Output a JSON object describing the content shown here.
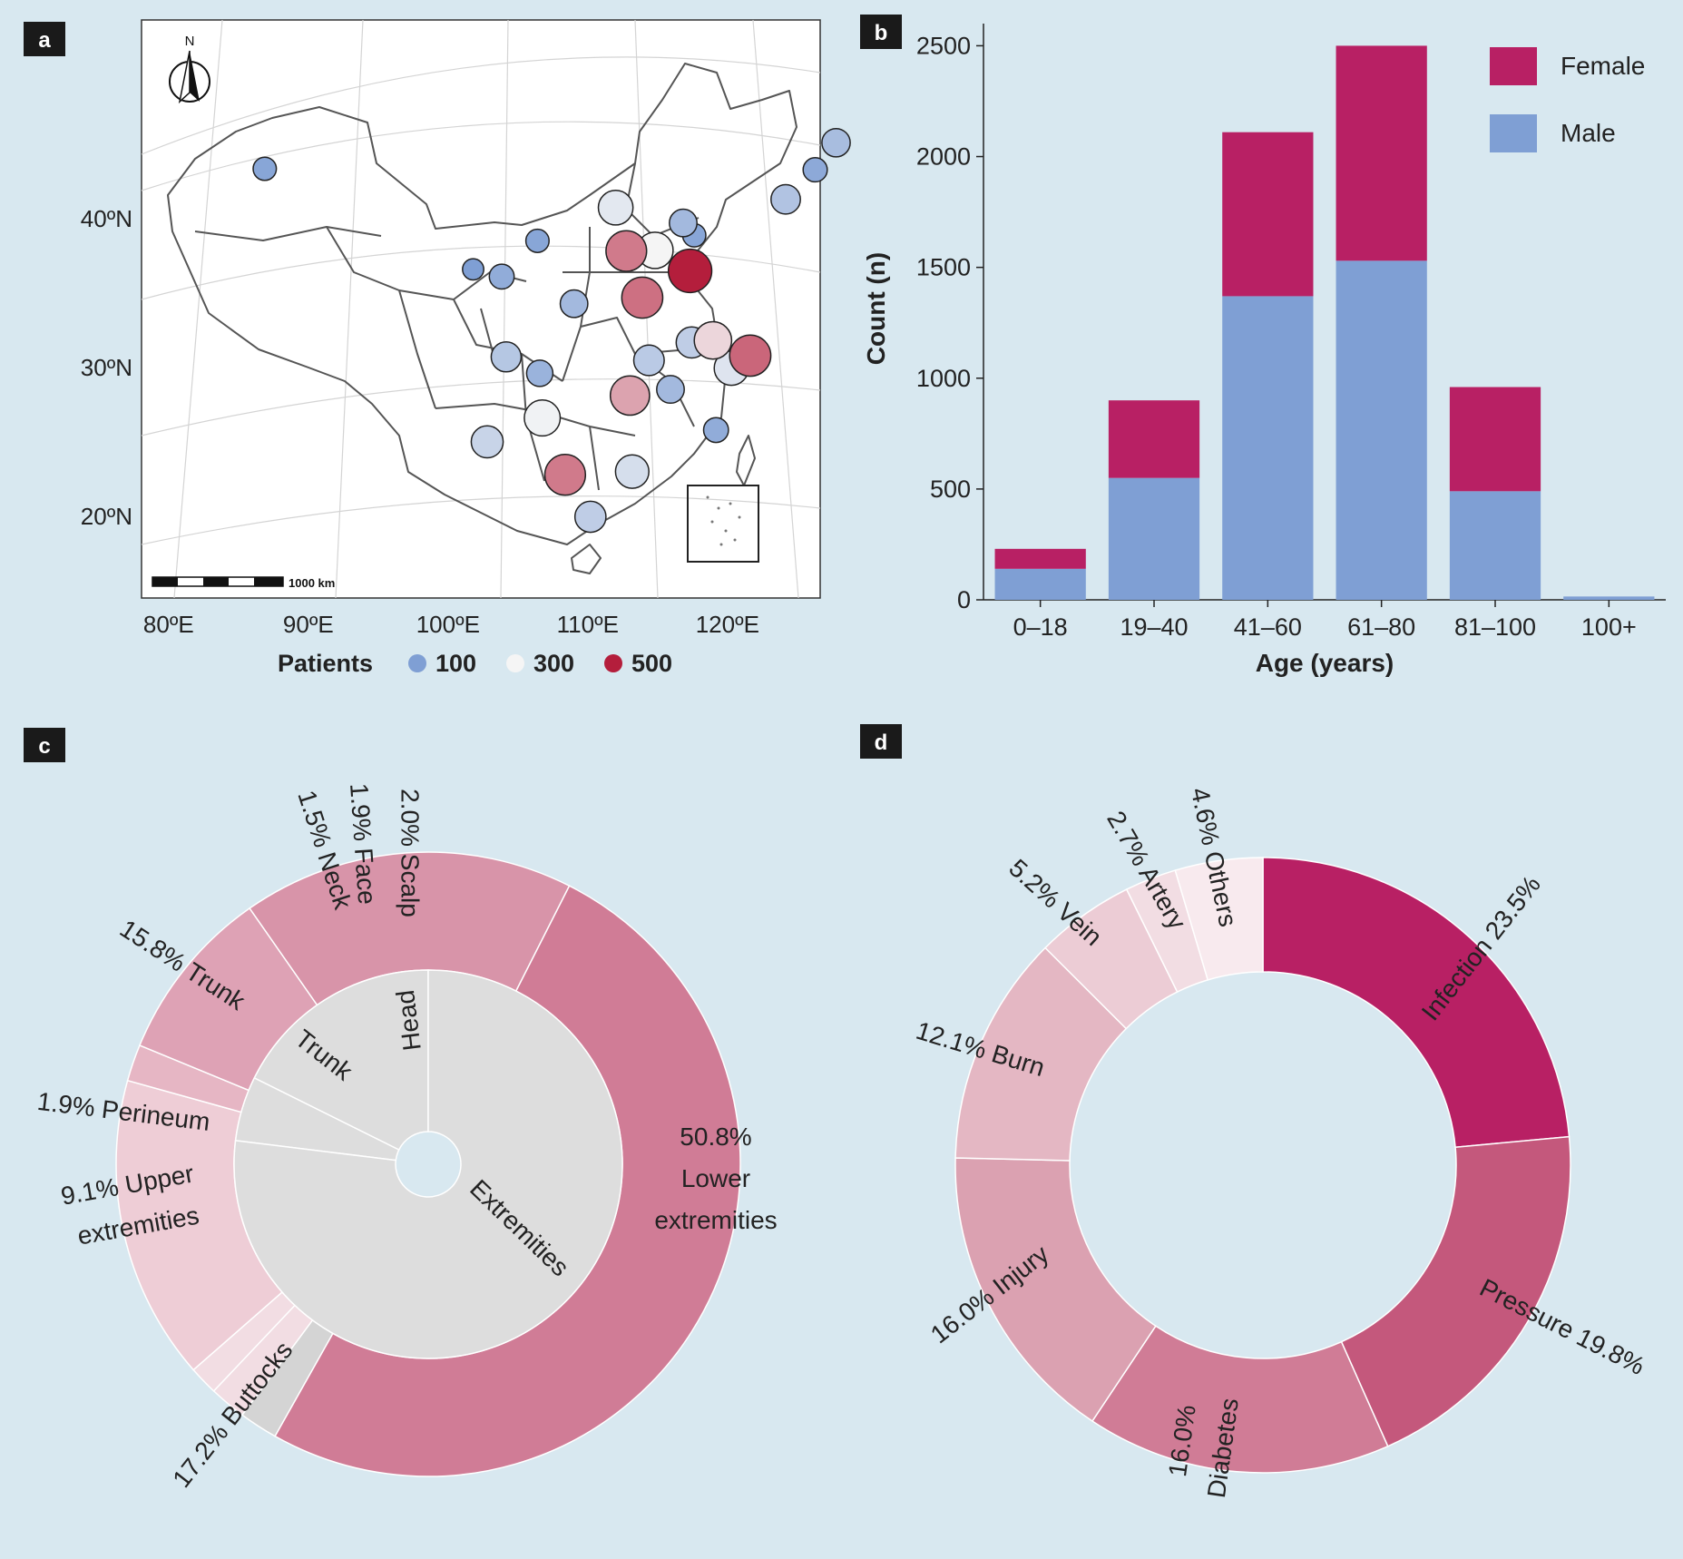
{
  "panels": [
    {
      "letter": "a"
    },
    {
      "letter": "b"
    },
    {
      "letter": "c"
    },
    {
      "letter": "d"
    }
  ],
  "colors": {
    "background": "#d8e8f0",
    "female": "#b82064",
    "male": "#7f9fd4",
    "low": "#7f9fd4",
    "mid": "#f5f5f5",
    "high": "#b41e3c"
  },
  "chart_data": [
    {
      "type": "scatter",
      "panel": "a",
      "subtype": "bubble-map",
      "north_label": "N",
      "scale_bar_label": "1000 km",
      "x_ticks": [
        "80ºE",
        "90ºE",
        "100ºE",
        "110ºE",
        "120ºE"
      ],
      "y_ticks": [
        "20ºN",
        "30ºN",
        "40ºN"
      ],
      "legend": {
        "title": "Patients",
        "entries": [
          {
            "label": "100",
            "value": 100,
            "color": "#7f9fd4"
          },
          {
            "label": "300",
            "value": 300,
            "color": "#f5f5f5"
          },
          {
            "label": "500",
            "value": 500,
            "color": "#b41e3c"
          }
        ]
      },
      "points": [
        {
          "lon": 87.6,
          "lat": 43.8,
          "value": 60
        },
        {
          "lon": 126.6,
          "lat": 45.8,
          "value": 130
        },
        {
          "lon": 125.3,
          "lat": 43.9,
          "value": 70
        },
        {
          "lon": 123.4,
          "lat": 41.8,
          "value": 150
        },
        {
          "lon": 111.7,
          "lat": 40.8,
          "value": 260
        },
        {
          "lon": 116.4,
          "lat": 39.9,
          "value": 120
        },
        {
          "lon": 117.2,
          "lat": 39.1,
          "value": 60
        },
        {
          "lon": 114.5,
          "lat": 38.0,
          "value": 300
        },
        {
          "lon": 112.5,
          "lat": 37.9,
          "value": 420
        },
        {
          "lon": 117.0,
          "lat": 36.7,
          "value": 510
        },
        {
          "lon": 106.3,
          "lat": 38.5,
          "value": 60
        },
        {
          "lon": 101.8,
          "lat": 36.6,
          "value": 40
        },
        {
          "lon": 103.8,
          "lat": 36.1,
          "value": 80
        },
        {
          "lon": 108.9,
          "lat": 34.3,
          "value": 120
        },
        {
          "lon": 113.7,
          "lat": 34.8,
          "value": 430
        },
        {
          "lon": 117.3,
          "lat": 31.9,
          "value": 180
        },
        {
          "lon": 118.8,
          "lat": 32.1,
          "value": 330
        },
        {
          "lon": 121.5,
          "lat": 31.2,
          "value": 440
        },
        {
          "lon": 120.2,
          "lat": 30.3,
          "value": 250
        },
        {
          "lon": 114.3,
          "lat": 30.6,
          "value": 170
        },
        {
          "lon": 115.9,
          "lat": 28.7,
          "value": 120
        },
        {
          "lon": 104.1,
          "lat": 30.7,
          "value": 160
        },
        {
          "lon": 106.5,
          "lat": 29.6,
          "value": 100
        },
        {
          "lon": 113.0,
          "lat": 28.2,
          "value": 380
        },
        {
          "lon": 119.3,
          "lat": 26.1,
          "value": 80
        },
        {
          "lon": 106.7,
          "lat": 26.6,
          "value": 290
        },
        {
          "lon": 102.7,
          "lat": 25.0,
          "value": 200
        },
        {
          "lon": 108.4,
          "lat": 22.8,
          "value": 420
        },
        {
          "lon": 113.3,
          "lat": 23.1,
          "value": 230
        },
        {
          "lon": 110.3,
          "lat": 20.0,
          "value": 180
        }
      ]
    },
    {
      "type": "bar",
      "panel": "b",
      "stacked": true,
      "categories": [
        "0–18",
        "19–40",
        "41–60",
        "61–80",
        "81–100",
        "100+"
      ],
      "series": [
        {
          "name": "Male",
          "values": [
            140,
            550,
            1370,
            1530,
            490,
            15
          ]
        },
        {
          "name": "Female",
          "values": [
            90,
            350,
            740,
            970,
            470,
            0
          ]
        }
      ],
      "xlabel": "Age (years)",
      "ylabel": "Count (n)",
      "ylim": [
        0,
        2600
      ],
      "y_ticks": [
        "0",
        "500",
        "1000",
        "1500",
        "2000",
        "2500"
      ],
      "grid": false,
      "legend_position": "top-right"
    },
    {
      "type": "pie",
      "panel": "c",
      "subtype": "sunburst",
      "inner": [
        {
          "label": "Head",
          "value": 5.4
        },
        {
          "label": "Trunk",
          "value": 17.7
        },
        {
          "label": "Extremities",
          "value": 77.1
        }
      ],
      "outer": [
        {
          "percent": "2.0%",
          "name": "Scalp",
          "value": 2.0
        },
        {
          "percent": "1.9%",
          "name": "Face",
          "value": 1.9
        },
        {
          "percent": "1.5%",
          "name": "Neck",
          "value": 1.5
        },
        {
          "percent": "15.8%",
          "name": "Trunk",
          "value": 15.8
        },
        {
          "percent": "1.9%",
          "name": "Perineum",
          "value": 1.9
        },
        {
          "percent": "9.1%",
          "name": "Upper extremities",
          "value": 9.1
        },
        {
          "percent": "17.2%",
          "name": "Buttocks",
          "value": 17.2
        },
        {
          "percent": "50.8%",
          "name": "Lower extremities",
          "value": 50.8
        }
      ]
    },
    {
      "type": "pie",
      "panel": "d",
      "subtype": "donut",
      "slices": [
        {
          "name": "Infection",
          "percent": "23.5%",
          "value": 23.5
        },
        {
          "name": "Pressure",
          "percent": "19.8%",
          "value": 19.8
        },
        {
          "name": "Diabetes",
          "percent": "16.0%",
          "value": 16.0
        },
        {
          "name": "Injury",
          "percent": "16.0%",
          "value": 16.0
        },
        {
          "name": "Burn",
          "percent": "12.1%",
          "value": 12.1
        },
        {
          "name": "Vein",
          "percent": "5.2%",
          "value": 5.2
        },
        {
          "name": "Artery",
          "percent": "2.7%",
          "value": 2.7
        },
        {
          "name": "Others",
          "percent": "4.6%",
          "value": 4.6
        }
      ]
    }
  ]
}
